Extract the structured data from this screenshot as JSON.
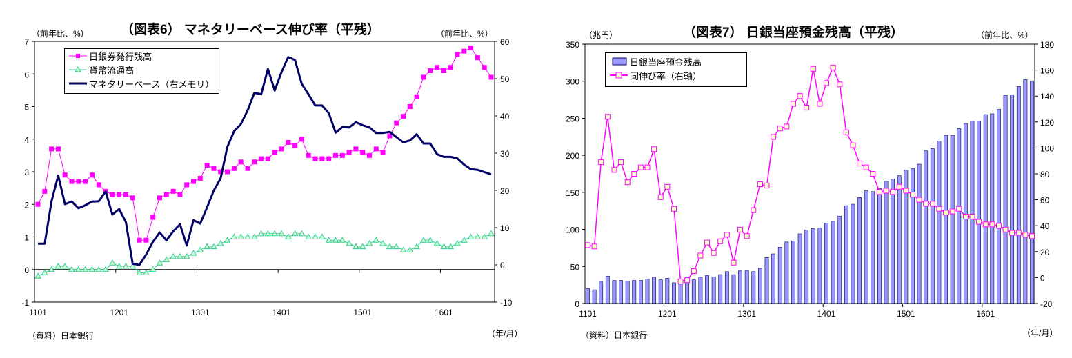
{
  "chart_data": [
    {
      "type": "line",
      "title": "（図表6） マネタリーベース伸び率（平残）",
      "ylabel_left": "（前年比、%）",
      "ylabel_right": "（前年比、%）",
      "xlabel": "（年/月）",
      "source": "（資料）日本銀行",
      "x_tick_labels": [
        "1101",
        "1201",
        "1301",
        "1401",
        "1501",
        "1601"
      ],
      "x_range": [
        "1101",
        "1608"
      ],
      "ylim_left": [
        -1,
        7
      ],
      "yticks_left": [
        "-1",
        "0",
        "1",
        "2",
        "3",
        "4",
        "5",
        "6",
        "7"
      ],
      "ylim_right": [
        -10,
        60
      ],
      "yticks_right": [
        "-10",
        "0",
        "10",
        "20",
        "30",
        "40",
        "50",
        "60"
      ],
      "grid": false,
      "legend_placement": "top-left",
      "series": [
        {
          "name": "日銀券発行残高",
          "axis": "left",
          "color": "#ff00ff",
          "marker": "square",
          "values": [
            2.0,
            2.4,
            3.7,
            3.7,
            2.9,
            2.7,
            2.7,
            2.7,
            2.9,
            2.6,
            2.4,
            2.3,
            2.3,
            2.3,
            2.2,
            0.9,
            0.9,
            1.6,
            2.2,
            2.3,
            2.4,
            2.3,
            2.6,
            2.7,
            2.8,
            3.2,
            3.1,
            3.0,
            3.0,
            3.1,
            3.3,
            3.1,
            3.3,
            3.4,
            3.4,
            3.6,
            3.7,
            3.9,
            3.8,
            4.0,
            3.5,
            3.4,
            3.4,
            3.4,
            3.5,
            3.5,
            3.6,
            3.7,
            3.6,
            3.5,
            3.7,
            3.6,
            4.1,
            4.5,
            4.7,
            5.0,
            5.3,
            5.9,
            6.1,
            6.2,
            6.1,
            6.2,
            6.6,
            6.7,
            6.8,
            6.5,
            6.2,
            5.9
          ]
        },
        {
          "name": "貨幣流通高",
          "axis": "left",
          "color": "#33cc99",
          "marker": "triangle",
          "values": [
            -0.2,
            -0.1,
            0.0,
            0.1,
            0.1,
            0.0,
            0.0,
            0.0,
            0.0,
            0.0,
            0.0,
            0.2,
            0.1,
            0.1,
            0.1,
            -0.1,
            -0.1,
            0.0,
            0.2,
            0.3,
            0.4,
            0.4,
            0.4,
            0.5,
            0.6,
            0.7,
            0.7,
            0.8,
            0.9,
            1.0,
            1.0,
            1.0,
            1.0,
            1.1,
            1.1,
            1.1,
            1.1,
            1.0,
            1.1,
            1.1,
            1.0,
            1.0,
            1.0,
            0.9,
            0.9,
            0.9,
            0.8,
            0.7,
            0.7,
            0.8,
            0.9,
            0.8,
            0.7,
            0.7,
            0.6,
            0.6,
            0.7,
            0.9,
            0.9,
            0.8,
            0.7,
            0.7,
            0.8,
            0.9,
            1.0,
            1.0,
            1.0,
            1.1
          ]
        },
        {
          "name": "マネタリーベース（右メモリ）",
          "axis": "right",
          "color": "#000066",
          "marker": "none",
          "values": [
            5.7,
            5.7,
            17.0,
            24.0,
            16.3,
            17.0,
            15.2,
            16.0,
            17.0,
            17.1,
            19.7,
            13.5,
            15.0,
            11.5,
            0.3,
            0.0,
            2.8,
            6.2,
            8.7,
            6.6,
            9.0,
            10.9,
            5.2,
            12.0,
            11.1,
            15.4,
            20.0,
            23.2,
            31.7,
            35.9,
            37.8,
            41.5,
            46.2,
            45.8,
            52.6,
            46.8,
            51.7,
            55.8,
            55.0,
            48.6,
            45.8,
            42.8,
            42.8,
            40.7,
            35.5,
            37.0,
            36.9,
            38.3,
            37.5,
            36.9,
            35.4,
            35.4,
            35.7,
            34.3,
            32.9,
            33.4,
            35.1,
            32.6,
            32.6,
            29.7,
            29.0,
            29.0,
            28.6,
            26.9,
            25.7,
            25.5,
            24.9,
            24.3
          ]
        }
      ]
    },
    {
      "type": "bar+line",
      "title": "（図表7） 日銀当座預金残高（平残）",
      "ylabel_left": "（兆円）",
      "ylabel_right": "（前年比、%）",
      "xlabel": "（年/月）",
      "source": "（資料）日本銀行",
      "x_tick_labels": [
        "1101",
        "1201",
        "1301",
        "1401",
        "1501",
        "1601"
      ],
      "x_range": [
        "1101",
        "1608"
      ],
      "ylim_left": [
        0,
        350
      ],
      "yticks_left": [
        "0",
        "50",
        "100",
        "150",
        "200",
        "250",
        "300",
        "350"
      ],
      "ylim_right": [
        -20,
        180
      ],
      "yticks_right": [
        "-20",
        "0",
        "20",
        "40",
        "60",
        "80",
        "100",
        "120",
        "140",
        "160",
        "180"
      ],
      "grid": false,
      "legend_placement": "top-left",
      "series": [
        {
          "name": "日銀当座預金残高",
          "axis": "left",
          "type": "bar",
          "color": "#9999ff",
          "values": [
            20,
            18.5,
            29,
            37,
            31,
            31,
            30,
            31,
            31,
            33,
            35.5,
            32,
            34,
            28,
            30,
            36,
            32,
            35.5,
            38,
            36,
            39,
            43,
            39,
            44,
            44,
            43,
            47.5,
            62,
            67,
            76,
            83,
            84.5,
            94,
            99,
            101,
            102,
            108.5,
            111,
            118,
            132,
            134,
            143,
            152,
            151,
            155,
            165,
            168,
            172.5,
            180,
            182,
            188,
            206,
            209,
            219,
            227,
            227,
            236,
            243,
            246,
            246,
            255,
            256,
            262,
            281,
            281.5,
            293,
            302,
            300
          ]
        },
        {
          "name": "同伸び率（右軸）",
          "axis": "right",
          "type": "line",
          "color": "#ff00ff",
          "marker": "square",
          "marker_fill": "#ffffcc",
          "values": [
            25,
            24,
            89,
            124,
            83,
            89,
            73.5,
            80,
            85,
            85,
            99,
            62,
            70,
            53,
            -3,
            -2,
            5,
            17,
            27,
            19,
            28,
            33,
            11.5,
            37,
            32,
            52,
            72,
            71,
            108.5,
            115,
            116.5,
            134,
            140,
            131,
            161,
            134,
            150,
            162,
            149,
            112,
            102,
            88,
            85,
            80,
            66,
            67,
            66,
            70,
            67,
            64,
            60,
            57,
            57,
            53,
            50,
            51,
            53,
            47,
            47,
            43,
            41,
            41,
            40,
            37,
            34.5,
            34.5,
            33,
            32
          ]
        }
      ]
    }
  ]
}
